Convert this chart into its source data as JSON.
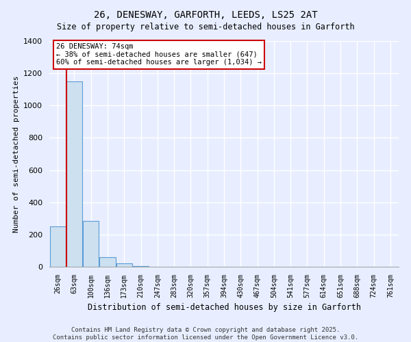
{
  "title_line1": "26, DENESWAY, GARFORTH, LEEDS, LS25 2AT",
  "title_line2": "Size of property relative to semi-detached houses in Garforth",
  "xlabel": "Distribution of semi-detached houses by size in Garforth",
  "ylabel": "Number of semi-detached properties",
  "categories": [
    "26sqm",
    "63sqm",
    "100sqm",
    "136sqm",
    "173sqm",
    "210sqm",
    "247sqm",
    "283sqm",
    "320sqm",
    "357sqm",
    "394sqm",
    "430sqm",
    "467sqm",
    "504sqm",
    "541sqm",
    "577sqm",
    "614sqm",
    "651sqm",
    "688sqm",
    "724sqm",
    "761sqm"
  ],
  "values": [
    252,
    1150,
    285,
    60,
    20,
    5,
    1,
    1,
    0,
    0,
    0,
    0,
    0,
    0,
    0,
    0,
    0,
    0,
    0,
    0,
    0
  ],
  "bar_color": "#cce0f0",
  "bar_edge_color": "#5b9bd5",
  "ylim": [
    0,
    1400
  ],
  "yticks": [
    0,
    200,
    400,
    600,
    800,
    1000,
    1200,
    1400
  ],
  "annotation_text": "26 DENESWAY: 74sqm\n← 38% of semi-detached houses are smaller (647)\n60% of semi-detached houses are larger (1,034) →",
  "annotation_box_color": "#ffffff",
  "annotation_box_edge_color": "#cc0000",
  "vline_color": "#cc0000",
  "footer_line1": "Contains HM Land Registry data © Crown copyright and database right 2025.",
  "footer_line2": "Contains public sector information licensed under the Open Government Licence v3.0.",
  "background_color": "#e8eeff",
  "grid_color": "#ffffff"
}
